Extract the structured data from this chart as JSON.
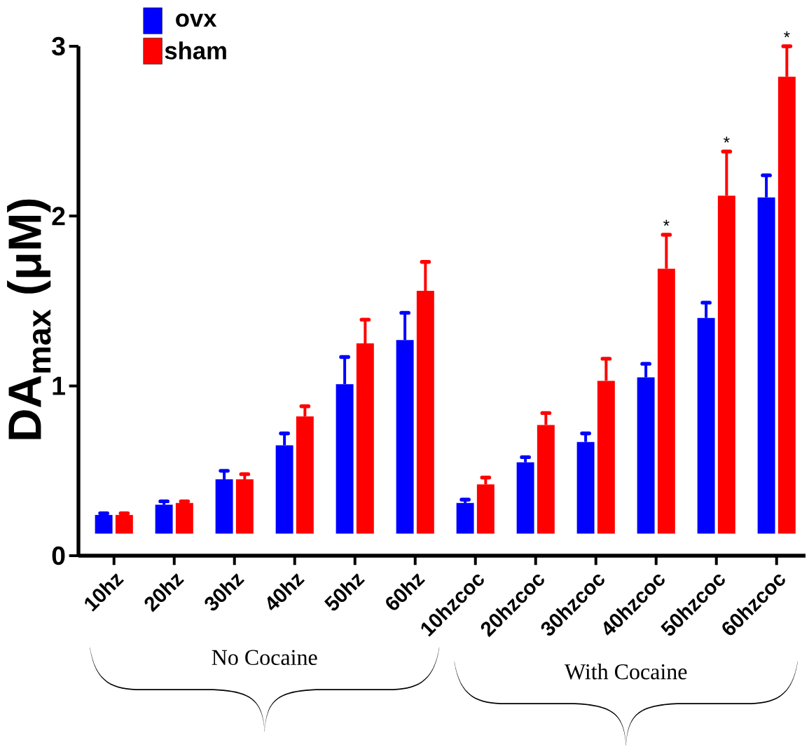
{
  "chart_data": {
    "type": "bar",
    "ylabel": "DA$_{max}$ (μM)",
    "categories": [
      "10hz",
      "20hz",
      "30hz",
      "40hz",
      "50hz",
      "60hz",
      "10hzcoc",
      "20hzcoc",
      "30hzcoc",
      "40hzcoc",
      "50hzcoc",
      "60hzcoc"
    ],
    "series": [
      {
        "name": "ovx",
        "color": "#0000ff",
        "base": [
          0.13,
          0.13,
          0.13,
          0.13,
          0.13,
          0.13,
          0.13,
          0.13,
          0.13,
          0.13,
          0.13,
          0.13
        ],
        "values": [
          0.11,
          0.17,
          0.32,
          0.52,
          0.88,
          1.14,
          0.18,
          0.42,
          0.54,
          0.92,
          1.27,
          1.98
        ],
        "errors": [
          [
            0.24,
            0.25
          ],
          [
            0.3,
            0.32
          ],
          [
            0.45,
            0.5
          ],
          [
            0.65,
            0.72
          ],
          [
            1.01,
            1.17
          ],
          [
            1.27,
            1.43
          ],
          [
            0.31,
            0.33
          ],
          [
            0.55,
            0.58
          ],
          [
            0.67,
            0.72
          ],
          [
            1.05,
            1.13
          ],
          [
            1.4,
            1.49
          ],
          [
            2.11,
            2.24
          ]
        ]
      },
      {
        "name": "sham",
        "color": "#ff0000",
        "base": [
          0.13,
          0.13,
          0.13,
          0.13,
          0.13,
          0.13,
          0.13,
          0.13,
          0.13,
          0.13,
          0.13,
          0.13
        ],
        "values": [
          0.11,
          0.18,
          0.32,
          0.69,
          1.12,
          1.43,
          0.29,
          0.64,
          0.9,
          1.56,
          1.99,
          2.69
        ],
        "errors": [
          [
            0.24,
            0.25
          ],
          [
            0.31,
            0.32
          ],
          [
            0.45,
            0.48
          ],
          [
            0.82,
            0.88
          ],
          [
            1.25,
            1.39
          ],
          [
            1.56,
            1.73
          ],
          [
            0.42,
            0.46
          ],
          [
            0.77,
            0.84
          ],
          [
            1.03,
            1.16
          ],
          [
            1.69,
            1.89
          ],
          [
            2.12,
            2.38
          ],
          [
            2.82,
            3.0
          ]
        ],
        "value_labels": [
          null,
          null,
          null,
          null,
          null,
          null,
          null,
          null,
          null,
          "*",
          "*",
          "*"
        ]
      }
    ],
    "ylim": [
      0,
      3
    ],
    "yticks": [
      0,
      1,
      2,
      3
    ],
    "legend": "top left",
    "grid": false,
    "annotations": [
      "No Cocaine",
      "With Cocaine"
    ]
  }
}
